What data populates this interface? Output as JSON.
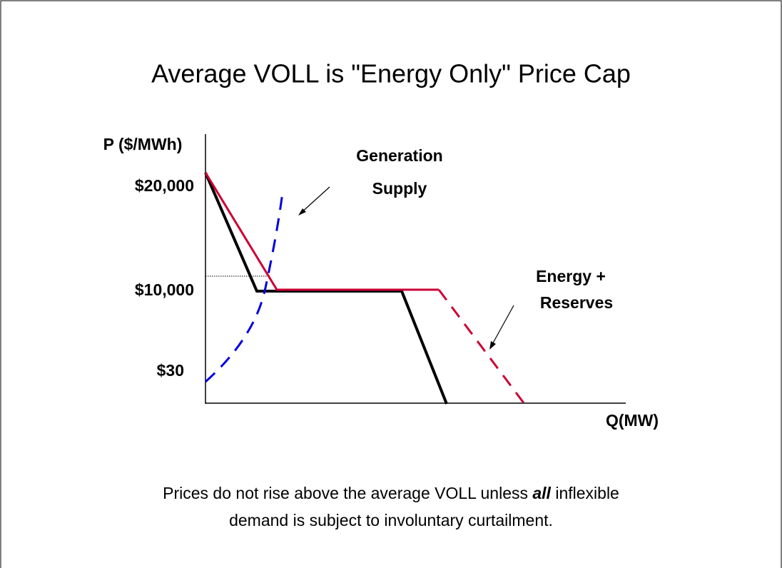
{
  "title": "Average VOLL is \"Energy Only\" Price Cap",
  "y_axis_label": "P ($/MWh)",
  "x_axis_label": "Q(MW)",
  "price_labels": [
    "$20,000",
    "$10,000",
    "$30"
  ],
  "annotations": [
    {
      "lines": [
        "Generation",
        "Supply"
      ]
    },
    {
      "lines": [
        "Energy +",
        "Reserves"
      ]
    }
  ],
  "caption": {
    "line1": [
      "Prices do not rise above the average VOLL unless ",
      "all",
      " inflexible"
    ],
    "line2": "demand is subject to involuntary curtailment."
  }
}
